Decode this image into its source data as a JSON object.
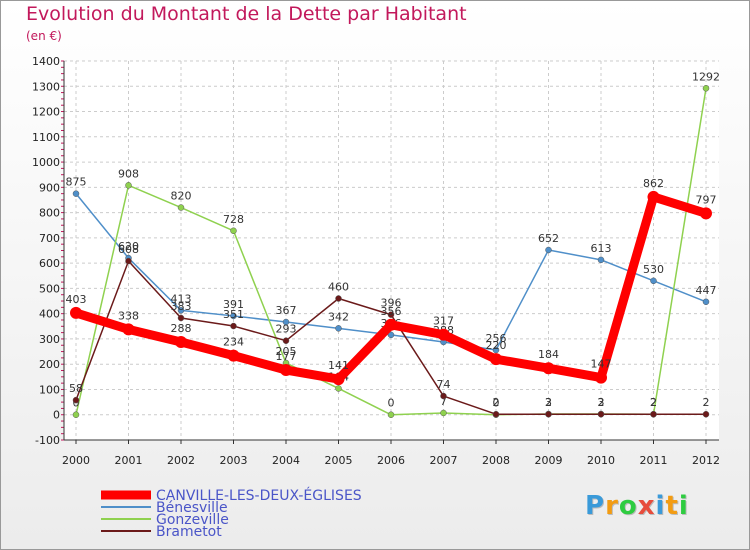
{
  "chart_data": {
    "type": "line",
    "title": "Evolution du Montant de la Dette par Habitant",
    "unit": "(en €)",
    "x": [
      "2000",
      "2001",
      "2002",
      "2003",
      "2004",
      "2005",
      "2006",
      "2007",
      "2008",
      "2009",
      "2010",
      "2011",
      "2012"
    ],
    "ylim": [
      -100,
      1400
    ],
    "yticks": [
      -100,
      0,
      100,
      200,
      300,
      400,
      500,
      600,
      700,
      800,
      900,
      1000,
      1100,
      1200,
      1300,
      1400
    ],
    "grid": true,
    "legend_position": "bottom-left",
    "series": [
      {
        "name": "CANVILLE-LES-DEUX-ÉGLISES",
        "color": "#ff0000",
        "values": [
          403,
          338,
          288,
          234,
          177,
          141,
          356,
          317,
          220,
          184,
          147,
          862,
          797
        ]
      },
      {
        "name": "Bénesville",
        "color": "#4f8fc9",
        "values": [
          875,
          620,
          413,
          391,
          367,
          342,
          316,
          288,
          256,
          652,
          613,
          530,
          447
        ]
      },
      {
        "name": "Gonzeville",
        "color": "#8fd14f",
        "values": [
          0,
          908,
          820,
          728,
          205,
          104,
          0,
          7,
          0,
          3,
          3,
          2,
          1292
        ]
      },
      {
        "name": "Brametot",
        "color": "#6b1a1a",
        "values": [
          58,
          608,
          383,
          351,
          293,
          460,
          396,
          74,
          2,
          2,
          2,
          2,
          2
        ]
      }
    ]
  },
  "logo": {
    "letters": [
      "P",
      "r",
      "o",
      "x",
      "i",
      "t",
      "i"
    ],
    "colors": [
      "#3a9ad9",
      "#f39c12",
      "#2ecc40",
      "#e74c3c",
      "#3a9ad9",
      "#f39c12",
      "#2ecc40"
    ]
  }
}
